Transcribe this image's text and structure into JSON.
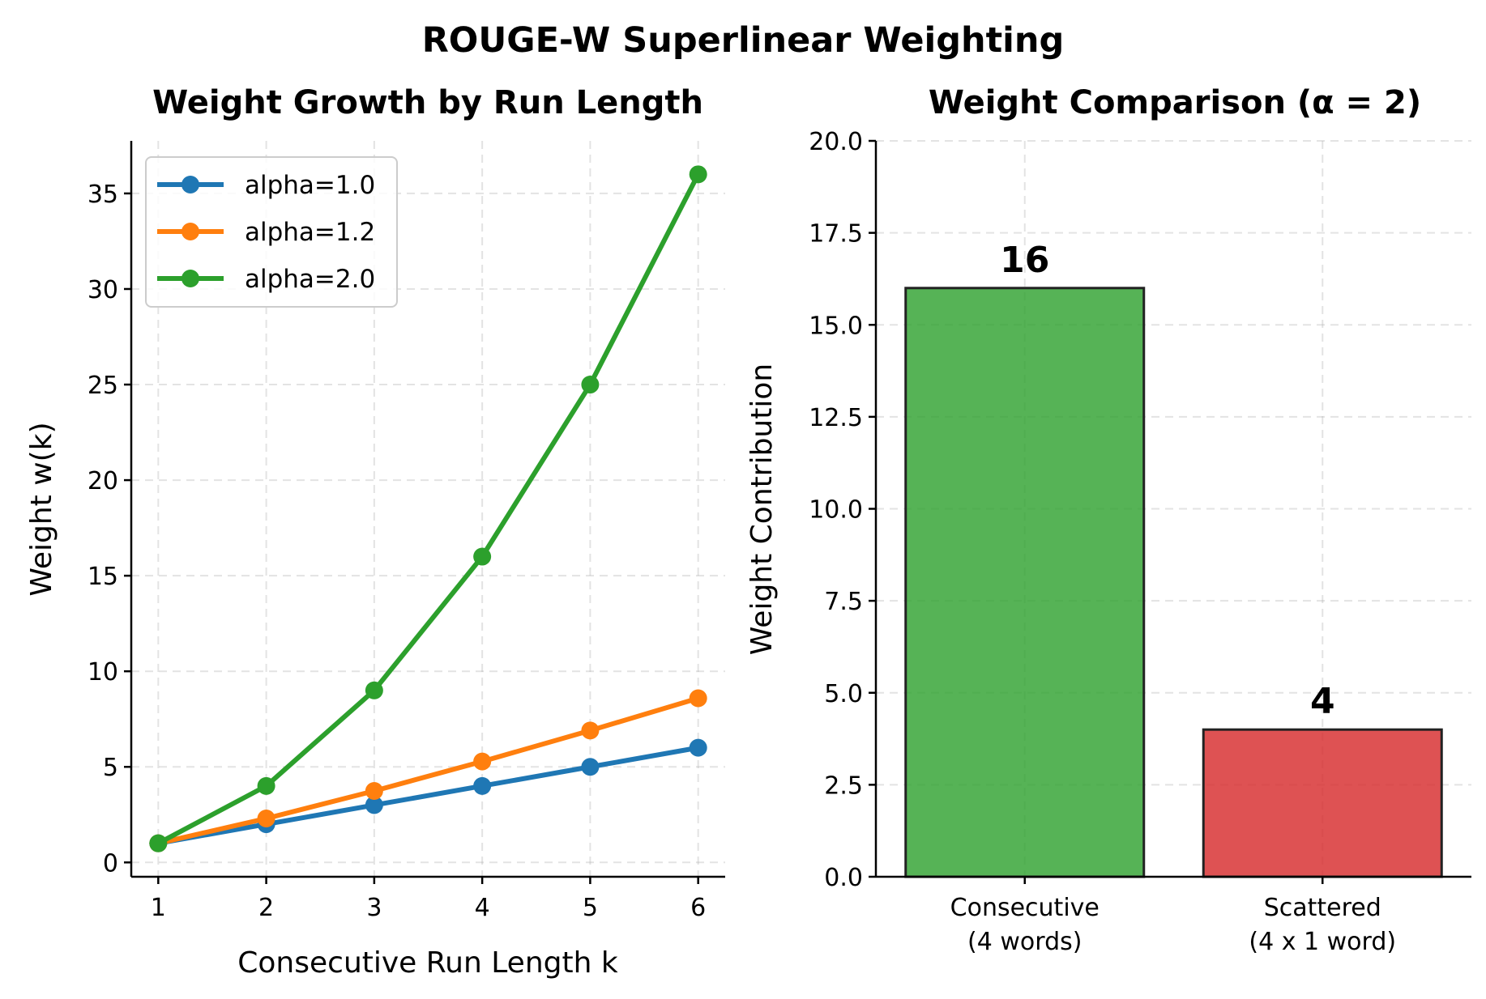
{
  "suptitle": "ROUGE-W Superlinear Weighting",
  "chart_data": [
    {
      "type": "line",
      "title": "Weight Growth by Run Length",
      "xlabel": "Consecutive Run Length k",
      "ylabel": "Weight w(k)",
      "x": [
        1,
        2,
        3,
        4,
        5,
        6
      ],
      "xticks": [
        "1",
        "2",
        "3",
        "4",
        "5",
        "6"
      ],
      "yticks": [
        "0",
        "5",
        "10",
        "15",
        "20",
        "25",
        "30",
        "35"
      ],
      "xlim": [
        0.75,
        6.25
      ],
      "ylim": [
        -0.75,
        37.75
      ],
      "grid": true,
      "legend_position": "upper-left",
      "series": [
        {
          "name": "alpha=1.0",
          "color": "#1f77b4",
          "values": [
            1,
            2,
            3,
            4,
            5,
            6
          ]
        },
        {
          "name": "alpha=1.2",
          "color": "#ff7f0e",
          "values": [
            1,
            2.3,
            3.74,
            5.28,
            6.9,
            8.59
          ]
        },
        {
          "name": "alpha=2.0",
          "color": "#2ca02c",
          "values": [
            1,
            4,
            9,
            16,
            25,
            36
          ]
        }
      ]
    },
    {
      "type": "bar",
      "title": "Weight Comparison (α = 2)",
      "xlabel": "",
      "ylabel": "Weight Contribution",
      "categories": [
        {
          "line1": "Consecutive",
          "line2": "(4 words)"
        },
        {
          "line1": "Scattered",
          "line2": "(4 x 1 word)"
        }
      ],
      "values": [
        16,
        4
      ],
      "value_labels": [
        "16",
        "4"
      ],
      "colors": [
        "#2ca02c",
        "#d62728"
      ],
      "yticks": [
        "0.0",
        "2.5",
        "5.0",
        "7.5",
        "10.0",
        "12.5",
        "15.0",
        "17.5",
        "20.0"
      ],
      "ylim": [
        0,
        20
      ],
      "grid": true
    }
  ]
}
